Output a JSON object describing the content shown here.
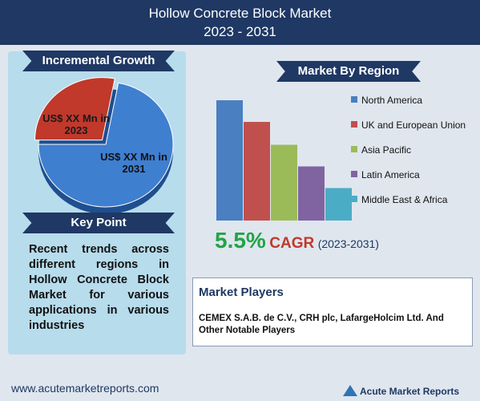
{
  "header": {
    "title": "Hollow Concrete Block Market",
    "subtitle": "2023 - 2031"
  },
  "incremental_growth": {
    "title": "Incremental Growth",
    "chart_data": {
      "type": "pie",
      "labels": [
        "US$ XX Mn in 2023",
        "US$ XX Mn in 2031"
      ],
      "values": [
        28,
        72
      ],
      "colors": [
        "#c0392b",
        "#3f7fd0"
      ]
    }
  },
  "key_point": {
    "title": "Key Point",
    "text": "Recent trends across different regions in Hollow Concrete Block Market for various applications in various industries"
  },
  "market_by_region": {
    "title": "Market By Region",
    "chart_data": {
      "type": "bar",
      "categories": [
        "North America",
        "UK and European Union",
        "Asia Pacific",
        "Latin America",
        "Middle East & Africa"
      ],
      "values": [
        100,
        82,
        63,
        45,
        27
      ],
      "colors": [
        "#4a7fc1",
        "#c0504d",
        "#9bbb59",
        "#8064a2",
        "#4bacc6"
      ]
    }
  },
  "cagr": {
    "value": "5.5%",
    "label": "CAGR",
    "period": "(2023-2031)"
  },
  "market_players": {
    "title": "Market Players",
    "text": "CEMEX S.A.B. de C.V., CRH plc, LafargeHolcim Ltd. And Other Notable Players"
  },
  "footer": {
    "url": "www.acutemarketreports.com",
    "logo": "Acute Market Reports"
  }
}
